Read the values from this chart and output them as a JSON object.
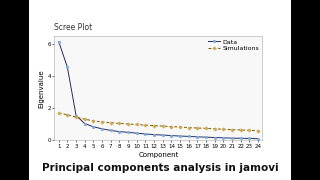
{
  "title": "Scree Plot",
  "xlabel": "Component",
  "ylabel": "Eigenvalue",
  "caption": "Principal components analysis in jamovi",
  "n_components": 24,
  "data_eigenvalues": [
    6.15,
    4.55,
    1.55,
    1.05,
    0.85,
    0.72,
    0.62,
    0.55,
    0.5,
    0.45,
    0.4,
    0.36,
    0.33,
    0.3,
    0.27,
    0.25,
    0.22,
    0.2,
    0.18,
    0.16,
    0.14,
    0.13,
    0.12,
    0.11
  ],
  "simulations_eigenvalues": [
    1.7,
    1.6,
    1.45,
    1.32,
    1.22,
    1.15,
    1.1,
    1.06,
    1.02,
    0.99,
    0.95,
    0.92,
    0.89,
    0.86,
    0.83,
    0.8,
    0.77,
    0.75,
    0.72,
    0.7,
    0.67,
    0.65,
    0.63,
    0.6
  ],
  "data_color": "#7aade0",
  "data_line_color": "#2a2a5a",
  "sim_color": "#d4a843",
  "sim_line_color": "#6b5a1a",
  "outer_bg_color": "#000000",
  "inner_bg_color": "#ffffff",
  "plot_area_bg": "#f8f8f8",
  "ylim": [
    0,
    6.5
  ],
  "yticks": [
    0,
    2,
    4,
    6
  ],
  "legend_labels": [
    "Data",
    "Simulations"
  ],
  "title_fontsize": 5.5,
  "label_fontsize": 5.0,
  "tick_fontsize": 4.0,
  "caption_fontsize": 7.5,
  "legend_fontsize": 4.5
}
